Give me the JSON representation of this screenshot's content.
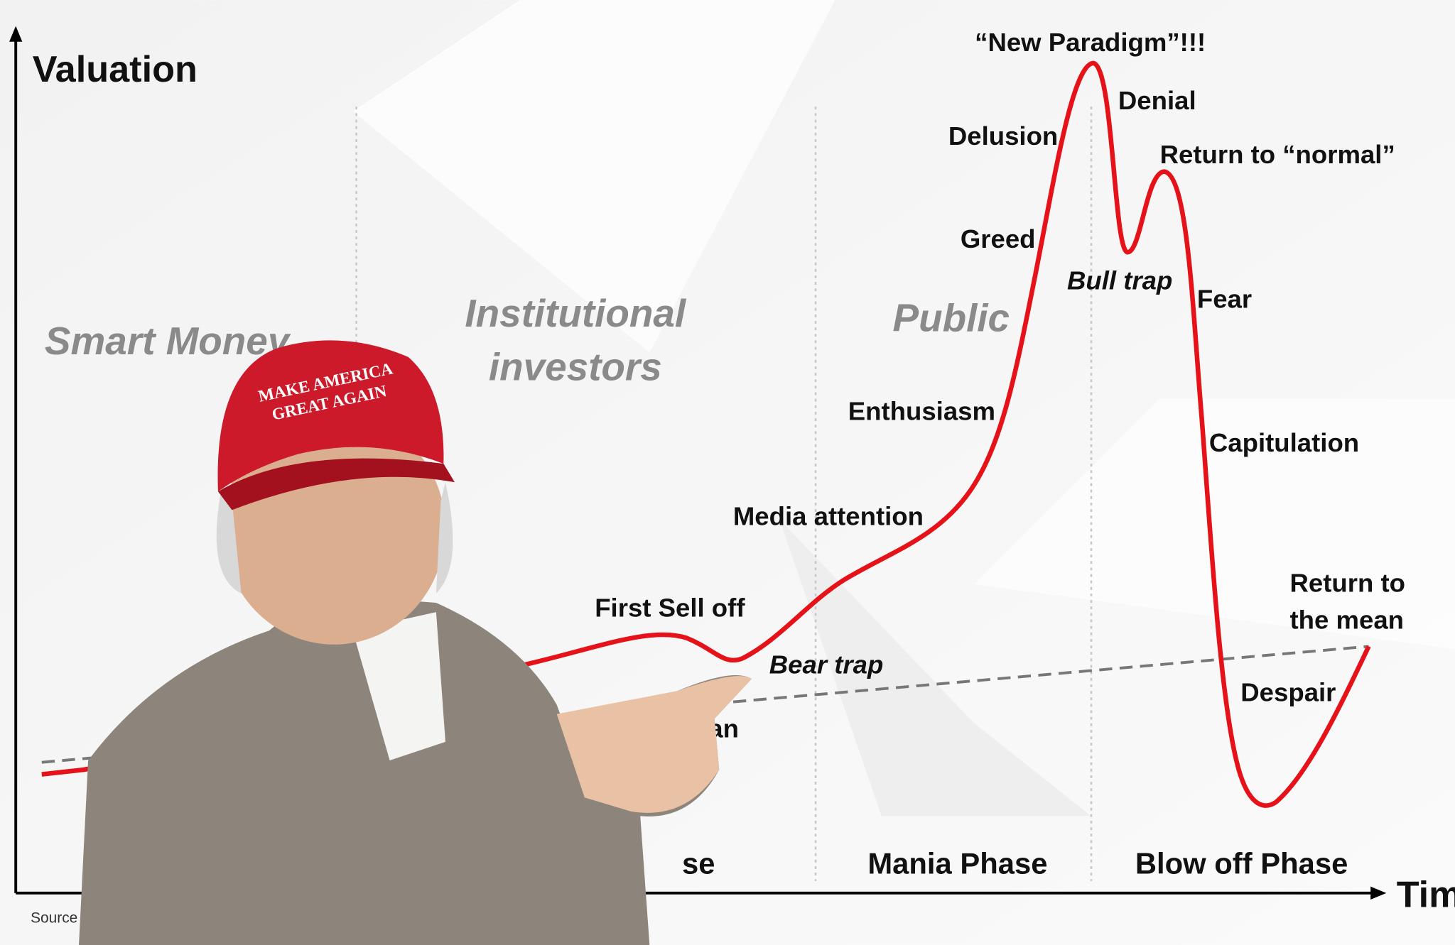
{
  "axes": {
    "y_label": "Valuation",
    "x_label": "Tim"
  },
  "groups": {
    "smart_money": "Smart Money",
    "institutional": [
      "Institutional",
      "investors"
    ],
    "public": "Public"
  },
  "annotations": {
    "new_paradigm": "“New Paradigm”!!!",
    "denial": "Denial",
    "delusion": "Delusion",
    "return_normal": "Return to “normal”",
    "greed": "Greed",
    "bull_trap": "Bull trap",
    "fear": "Fear",
    "enthusiasm": "Enthusiasm",
    "capitulation": "Capitulation",
    "media_attention": "Media attention",
    "first_sell_off": "First Sell off",
    "return_mean": [
      "Return to",
      "the mean"
    ],
    "bear_trap": "Bear trap",
    "despair": "Despair",
    "mean": "ean"
  },
  "phases": [
    "se",
    "Mania Phase",
    "Blow off Phase"
  ],
  "source": "Source",
  "hat_text": [
    "MAKE AMERICA",
    "GREAT AGAIN"
  ]
}
